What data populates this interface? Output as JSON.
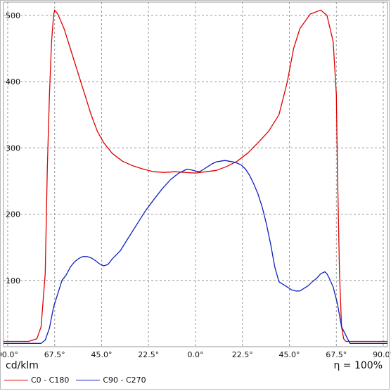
{
  "chart_data": {
    "type": "line",
    "ylabel": "cd/klm",
    "efficiency_label": "η = 100%",
    "x_ticks": [
      "90.0°",
      "67.5°",
      "45.0°",
      "22.5°",
      "0.0°",
      "22.5°",
      "45.0°",
      "67.5°",
      "90.0°"
    ],
    "x_tick_values": [
      -90,
      -67.5,
      -45,
      -22.5,
      0,
      22.5,
      45,
      67.5,
      90
    ],
    "xlim": [
      -92,
      92
    ],
    "y_ticks": [
      "100",
      "200",
      "300",
      "400",
      "500"
    ],
    "y_tick_values": [
      100,
      200,
      300,
      400,
      500
    ],
    "ylim": [
      0,
      520
    ],
    "grid": true,
    "legend_position": "bottom-left",
    "series": [
      {
        "name": "C0 - C180",
        "color": "#e00000",
        "x": [
          -92,
          -80,
          -76,
          -74,
          -72,
          -71,
          -70,
          -69,
          -68,
          -67.5,
          -66,
          -63,
          -60,
          -55,
          -50,
          -47,
          -44,
          -40,
          -35,
          -30,
          -25,
          -20,
          -15,
          -10,
          -5,
          0,
          5,
          10,
          15,
          20,
          25,
          30,
          35,
          40,
          44,
          47,
          50,
          55,
          60,
          63,
          66,
          67.5,
          68,
          69,
          70,
          71,
          72,
          74,
          76,
          80,
          92
        ],
        "y": [
          8,
          8,
          12,
          30,
          110,
          270,
          380,
          460,
          500,
          508,
          502,
          480,
          450,
          400,
          350,
          325,
          308,
          292,
          280,
          273,
          268,
          264,
          263,
          264,
          263,
          262,
          264,
          266,
          272,
          280,
          292,
          308,
          325,
          350,
          400,
          450,
          480,
          502,
          508,
          500,
          460,
          380,
          270,
          110,
          30,
          12,
          8,
          8,
          8,
          8,
          8
        ]
      },
      {
        "name": "C90 - C270",
        "color": "#1020c0",
        "x": [
          -92,
          -74,
          -72,
          -70,
          -68,
          -66,
          -64,
          -62,
          -60,
          -58,
          -56,
          -54,
          -52,
          -50,
          -48,
          -46,
          -44,
          -42,
          -40,
          -36,
          -32,
          -28,
          -24,
          -20,
          -16,
          -12,
          -8,
          -4,
          -1,
          0,
          2,
          4,
          6,
          8,
          10,
          12,
          14,
          16,
          18,
          20,
          22,
          24,
          26,
          28,
          30,
          32,
          34,
          36,
          38,
          40,
          44,
          46,
          48,
          50,
          52,
          54,
          56,
          58,
          60,
          62,
          63,
          64,
          65,
          66,
          68,
          70,
          74,
          92
        ],
        "y": [
          5,
          5,
          10,
          28,
          60,
          80,
          100,
          108,
          120,
          128,
          133,
          136,
          136,
          134,
          130,
          125,
          122,
          124,
          132,
          145,
          165,
          185,
          205,
          222,
          238,
          252,
          262,
          268,
          266,
          265,
          264,
          268,
          272,
          276,
          279,
          280,
          281,
          280,
          279,
          277,
          274,
          268,
          258,
          245,
          230,
          210,
          185,
          155,
          120,
          98,
          90,
          86,
          84,
          84,
          88,
          92,
          98,
          103,
          110,
          113,
          110,
          104,
          97,
          90,
          65,
          30,
          5,
          5
        ]
      }
    ]
  }
}
